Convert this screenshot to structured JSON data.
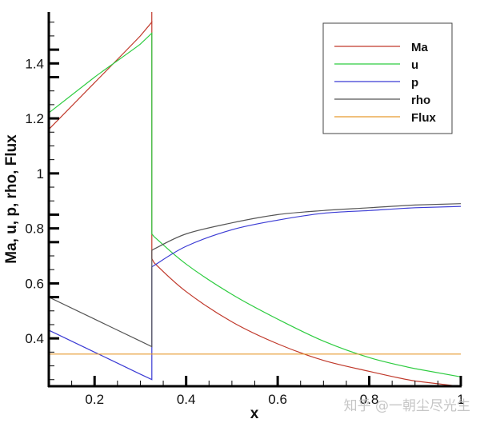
{
  "chart_data": {
    "type": "line",
    "title": "",
    "xlabel": "x",
    "ylabel": "Ma, u, p, rho, Flux",
    "xlim": [
      0.1,
      1.0
    ],
    "ylim": [
      0.226,
      1.587
    ],
    "grid": false,
    "legend_position": "upper-right",
    "x_ticks": [
      "0.2",
      "0.4",
      "0.6",
      "0.8",
      "1"
    ],
    "y_ticks": [
      "0.4",
      "0.6",
      "0.8",
      "1",
      "1.2",
      "1.4"
    ],
    "shock_location_x": 0.325,
    "series": [
      {
        "name": "Ma",
        "color": "#c0392b",
        "x": [
          0.1,
          0.2,
          0.3,
          0.325,
          0.325,
          0.33,
          0.4,
          0.5,
          0.6,
          0.7,
          0.8,
          0.9,
          1.0
        ],
        "values": [
          1.16,
          1.33,
          1.5,
          1.55,
          0.69,
          0.675,
          0.57,
          0.46,
          0.38,
          0.32,
          0.28,
          0.245,
          0.225
        ]
      },
      {
        "name": "u",
        "color": "#2ecc40",
        "x": [
          0.1,
          0.2,
          0.3,
          0.325,
          0.325,
          0.33,
          0.4,
          0.5,
          0.6,
          0.7,
          0.8,
          0.9,
          1.0
        ],
        "values": [
          1.22,
          1.35,
          1.47,
          1.51,
          0.78,
          0.77,
          0.67,
          0.56,
          0.47,
          0.39,
          0.33,
          0.29,
          0.26
        ]
      },
      {
        "name": "p",
        "color": "#3b3bd4",
        "x": [
          0.1,
          0.2,
          0.3,
          0.325,
          0.325,
          0.33,
          0.4,
          0.5,
          0.6,
          0.7,
          0.8,
          0.9,
          1.0
        ],
        "values": [
          0.43,
          0.35,
          0.27,
          0.25,
          0.66,
          0.665,
          0.735,
          0.795,
          0.83,
          0.855,
          0.865,
          0.875,
          0.88
        ]
      },
      {
        "name": "rho",
        "color": "#555555",
        "x": [
          0.1,
          0.2,
          0.3,
          0.325,
          0.325,
          0.33,
          0.4,
          0.5,
          0.6,
          0.7,
          0.8,
          0.9,
          1.0
        ],
        "values": [
          0.55,
          0.47,
          0.39,
          0.37,
          0.72,
          0.725,
          0.78,
          0.82,
          0.85,
          0.865,
          0.875,
          0.885,
          0.89
        ]
      },
      {
        "name": "Flux",
        "color": "#e69a2e",
        "x": [
          0.1,
          1.0
        ],
        "values": [
          0.343,
          0.343
        ]
      }
    ],
    "annotations": [
      "知乎 @一朝尘尽光生"
    ]
  },
  "legend": {
    "items": [
      {
        "label": "Ma",
        "color": "#c0392b"
      },
      {
        "label": "u",
        "color": "#2ecc40"
      },
      {
        "label": "p",
        "color": "#3b3bd4"
      },
      {
        "label": "rho",
        "color": "#555555"
      },
      {
        "label": "Flux",
        "color": "#e69a2e"
      }
    ]
  },
  "axes": {
    "x_title": "x",
    "y_title": "Ma, u, p, rho, Flux"
  },
  "watermark": "知乎 @一朝尘尽光生"
}
